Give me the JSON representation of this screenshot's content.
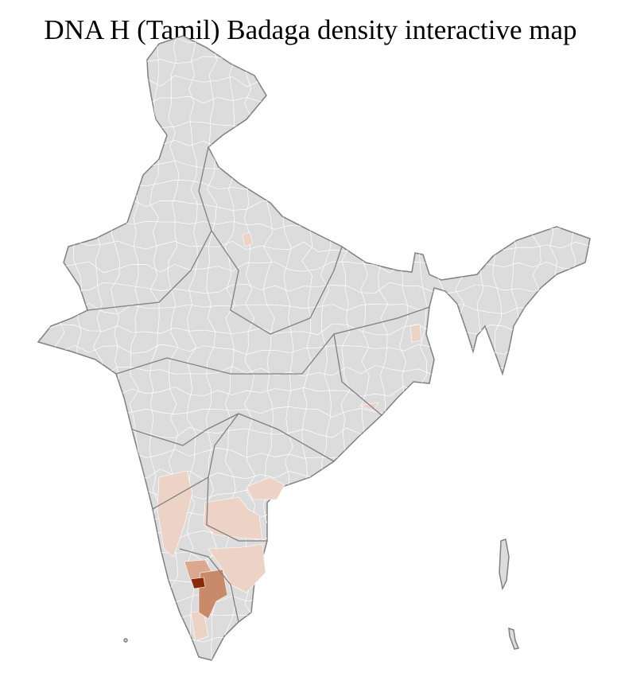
{
  "title": "DNA H (Tamil) Badaga density interactive map",
  "colors": {
    "base": "#dcdcdc",
    "border": "#808080",
    "district_border": "#ffffff",
    "low": "#ecd3c6",
    "medium": "#d9a88f",
    "high": "#c98a6c",
    "highest": "#8b2a0a"
  }
}
